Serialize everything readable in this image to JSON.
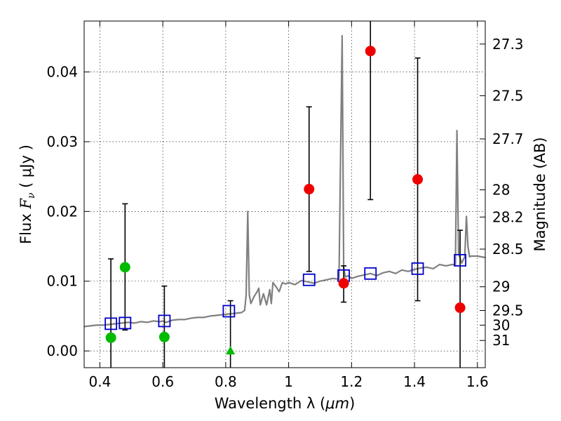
{
  "chart_data": {
    "type": "scatter",
    "xlabel_text": "Wavelength  λ (",
    "xlabel_unit": "μm",
    "xlabel_close": ")",
    "ylabel_prefix": "Flux  ",
    "ylabel_var": "F",
    "ylabel_sub": "ν",
    "ylabel_unit": "  ( μJy )",
    "ylabel_right": "Magnitude (AB)",
    "xlim": [
      0.35,
      1.625
    ],
    "ylim": [
      -0.0024,
      0.0473
    ],
    "x_ticks": [
      0.4,
      0.6,
      0.8,
      1.0,
      1.2,
      1.4,
      1.6
    ],
    "x_tick_labels": [
      "0.4",
      "0.6",
      "0.8",
      "1",
      "1.2",
      "1.4",
      "1.6"
    ],
    "y_ticks": [
      0.0,
      0.01,
      0.02,
      0.03,
      0.04
    ],
    "y_tick_labels": [
      "0.00",
      "0.01",
      "0.02",
      "0.03",
      "0.04"
    ],
    "mag_ticks": [
      {
        "label": "27.3",
        "flux": 0.044
      },
      {
        "label": "27.5",
        "flux": 0.0366
      },
      {
        "label": "27.7",
        "flux": 0.0304
      },
      {
        "label": "28",
        "flux": 0.0231
      },
      {
        "label": "28.2",
        "flux": 0.0192
      },
      {
        "label": "28.5",
        "flux": 0.0146
      },
      {
        "label": "29",
        "flux": 0.0092
      },
      {
        "label": "29.5",
        "flux": 0.0058
      },
      {
        "label": "30",
        "flux": 0.0037
      },
      {
        "label": "31",
        "flux": 0.0015
      }
    ],
    "model_spectrum": {
      "color": "#808080",
      "x": [
        0.35,
        0.37,
        0.39,
        0.41,
        0.43,
        0.45,
        0.47,
        0.49,
        0.51,
        0.53,
        0.55,
        0.57,
        0.59,
        0.6,
        0.61,
        0.63,
        0.65,
        0.67,
        0.69,
        0.71,
        0.73,
        0.75,
        0.77,
        0.79,
        0.81,
        0.83,
        0.85,
        0.86,
        0.865,
        0.87,
        0.875,
        0.88,
        0.89,
        0.9,
        0.905,
        0.91,
        0.92,
        0.93,
        0.94,
        0.945,
        0.95,
        0.96,
        0.97,
        0.98,
        0.99,
        1.0,
        1.02,
        1.04,
        1.06,
        1.08,
        1.1,
        1.12,
        1.14,
        1.16,
        1.17,
        1.175,
        1.18,
        1.19,
        1.2,
        1.22,
        1.24,
        1.26,
        1.28,
        1.3,
        1.32,
        1.34,
        1.36,
        1.38,
        1.4,
        1.42,
        1.44,
        1.46,
        1.48,
        1.5,
        1.52,
        1.53,
        1.535,
        1.54,
        1.55,
        1.56,
        1.565,
        1.57,
        1.575,
        1.58,
        1.6,
        1.625
      ],
      "y": [
        0.0035,
        0.0036,
        0.0037,
        0.0037,
        0.0038,
        0.0039,
        0.004,
        0.0041,
        0.004,
        0.0042,
        0.0041,
        0.0043,
        0.0042,
        0.0043,
        0.0041,
        0.0044,
        0.0045,
        0.0045,
        0.0047,
        0.0048,
        0.0048,
        0.005,
        0.0051,
        0.0052,
        0.0053,
        0.0054,
        0.0055,
        0.0058,
        0.008,
        0.02,
        0.008,
        0.0068,
        0.0078,
        0.0085,
        0.009,
        0.0066,
        0.0082,
        0.0066,
        0.0088,
        0.0068,
        0.0098,
        0.0092,
        0.0085,
        0.0098,
        0.0096,
        0.0098,
        0.0095,
        0.0101,
        0.0099,
        0.0097,
        0.01,
        0.0102,
        0.0104,
        0.0103,
        0.0452,
        0.012,
        0.0106,
        0.0108,
        0.0104,
        0.0107,
        0.0109,
        0.0111,
        0.0108,
        0.0112,
        0.0114,
        0.0111,
        0.0116,
        0.0114,
        0.0117,
        0.0119,
        0.012,
        0.0118,
        0.0124,
        0.0122,
        0.0124,
        0.0123,
        0.0316,
        0.014,
        0.0126,
        0.0135,
        0.0193,
        0.015,
        0.0135,
        0.0136,
        0.0136,
        0.0134
      ]
    },
    "series": [
      {
        "name": "model photometry",
        "marker": "open-square",
        "color": "#0000cc",
        "x": [
          0.435,
          0.48,
          0.605,
          0.81,
          1.065,
          1.175,
          1.26,
          1.41,
          1.545
        ],
        "y": [
          0.0039,
          0.004,
          0.0043,
          0.0057,
          0.0102,
          0.0108,
          0.0111,
          0.0118,
          0.013
        ]
      },
      {
        "name": "observed (green)",
        "marker": "circle",
        "color": "#00bb00",
        "x": [
          0.435,
          0.48,
          0.605
        ],
        "y": [
          0.0019,
          0.012,
          0.002
        ],
        "yerr_low": [
          -0.0024,
          0.003,
          -0.0024
        ],
        "yerr_high": [
          0.0132,
          0.0211,
          0.0093
        ]
      },
      {
        "name": "observed (red)",
        "marker": "circle",
        "color": "#ee0000",
        "x": [
          1.065,
          1.175,
          1.26,
          1.41,
          1.545
        ],
        "y": [
          0.0232,
          0.0097,
          0.043,
          0.0246,
          0.0062
        ],
        "yerr_low": [
          0.0114,
          0.007,
          0.0217,
          0.0072,
          -0.0024
        ],
        "yerr_high": [
          0.035,
          0.0122,
          0.0473,
          0.042,
          0.0173
        ]
      },
      {
        "name": "upper limit",
        "marker": "triangle",
        "color": "#00bb00",
        "x": [
          0.815
        ],
        "y": [
          0.0
        ],
        "yerr_low": [
          -0.0024
        ],
        "yerr_high": [
          0.0072
        ]
      }
    ],
    "grid": true
  }
}
